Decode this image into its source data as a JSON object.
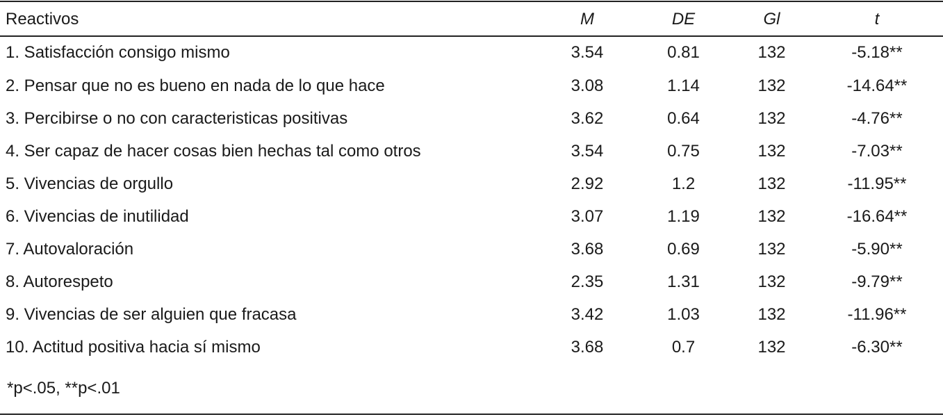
{
  "table": {
    "headers": {
      "item": "Reactivos",
      "m": "M",
      "de": "DE",
      "gl": "Gl",
      "t": "t"
    },
    "rows": [
      {
        "item": "1. Satisfacción consigo mismo",
        "m": "3.54",
        "de": "0.81",
        "gl": "132",
        "t": "-5.18**"
      },
      {
        "item": "2. Pensar que no es bueno en nada de lo que hace",
        "m": "3.08",
        "de": "1.14",
        "gl": "132",
        "t": "-14.64**"
      },
      {
        "item": "3. Percibirse o no con caracteristicas positivas",
        "m": "3.62",
        "de": "0.64",
        "gl": "132",
        "t": "-4.76**"
      },
      {
        "item": "4. Ser capaz de hacer cosas bien hechas tal como otros",
        "m": "3.54",
        "de": "0.75",
        "gl": "132",
        "t": "-7.03**"
      },
      {
        "item": "5. Vivencias de orgullo",
        "m": "2.92",
        "de": "1.2",
        "gl": "132",
        "t": "-11.95**"
      },
      {
        "item": "6. Vivencias de inutilidad",
        "m": "3.07",
        "de": "1.19",
        "gl": "132",
        "t": "-16.64**"
      },
      {
        "item": "7. Autovaloración",
        "m": "3.68",
        "de": "0.69",
        "gl": "132",
        "t": "-5.90**"
      },
      {
        "item": "8. Autorespeto",
        "m": "2.35",
        "de": "1.31",
        "gl": "132",
        "t": "-9.79**"
      },
      {
        "item": "9. Vivencias de ser alguien que fracasa",
        "m": "3.42",
        "de": "1.03",
        "gl": "132",
        "t": "-11.96**"
      },
      {
        "item": "10. Actitud positiva hacia sí mismo",
        "m": "3.68",
        "de": "0.7",
        "gl": "132",
        "t": "-6.30**"
      }
    ],
    "note": "*p<.05, **p<.01"
  }
}
